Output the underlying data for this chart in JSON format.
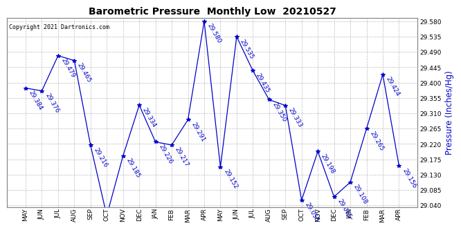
{
  "title": "Barometric Pressure  Monthly Low  20210527",
  "ylabel": "Pressure (Inches/Hg)",
  "copyright": "Copyright 2021 Dartronics.com",
  "months": [
    "MAY",
    "JUN",
    "JUL",
    "AUG",
    "SEP",
    "OCT",
    "NOV",
    "DEC",
    "JAN",
    "FEB",
    "MAR",
    "APR",
    "MAY",
    "JUN",
    "JUL",
    "AUG",
    "SEP",
    "OCT",
    "NOV",
    "DEC",
    "JAN",
    "FEB",
    "MAR",
    "APR"
  ],
  "values": [
    29.384,
    29.376,
    29.479,
    29.465,
    29.216,
    29.01,
    29.185,
    29.334,
    29.226,
    29.217,
    29.291,
    29.58,
    29.152,
    29.535,
    29.435,
    29.35,
    29.333,
    29.055,
    29.198,
    29.065,
    29.108,
    29.265,
    29.424,
    29.156
  ],
  "line_color": "#0000cc",
  "marker_color": "#0000cc",
  "bg_color": "#ffffff",
  "grid_color": "#bbbbbb",
  "ylim_min": 29.035,
  "ylim_max": 29.59,
  "ytick_step": 0.045,
  "title_fontsize": 10,
  "label_fontsize": 6.5,
  "annot_fontsize": 6.5,
  "right_ytick_labels": [
    "29.040",
    "29.085",
    "29.130",
    "29.175",
    "29.220",
    "29.265",
    "29.310",
    "29.355",
    "29.400",
    "29.445",
    "29.490",
    "29.535",
    "29.580"
  ]
}
